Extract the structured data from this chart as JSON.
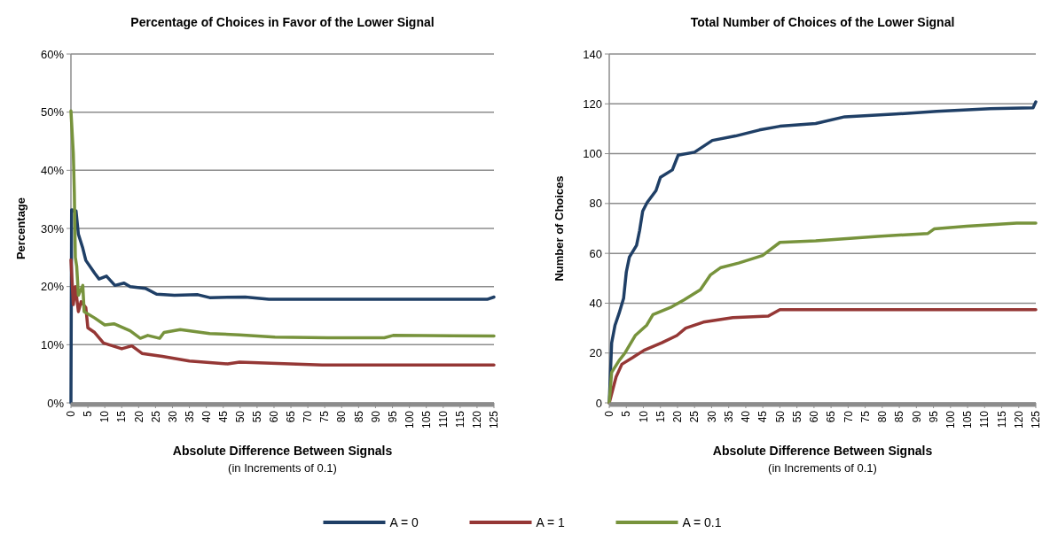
{
  "chart_data": [
    {
      "type": "line",
      "title": "Percentage of Choices in Favor of the Lower Signal",
      "xlabel": "Absolute Difference Between Signals",
      "annotations": [
        "(in Increments of 0.1)"
      ],
      "ylabel": "Percentage",
      "xlim": [
        0,
        125
      ],
      "xticks": [
        0,
        5,
        10,
        15,
        20,
        25,
        30,
        35,
        40,
        45,
        50,
        55,
        60,
        65,
        70,
        75,
        80,
        85,
        90,
        95,
        100,
        105,
        110,
        115,
        120,
        125
      ],
      "ylim": [
        0,
        60
      ],
      "yticks": [
        {
          "value": 0,
          "label": "0%"
        },
        {
          "value": 10,
          "label": "10%"
        },
        {
          "value": 20,
          "label": "20%"
        },
        {
          "value": 30,
          "label": "30%"
        },
        {
          "value": 40,
          "label": "40%"
        },
        {
          "value": 50,
          "label": "50%"
        },
        {
          "value": 60,
          "label": "60%"
        }
      ],
      "grid": "y",
      "legend": "bottom",
      "marker": "none",
      "series": [
        {
          "name": "A = 0",
          "color": "#1f3f66",
          "x": [
            0,
            0.2,
            1.5,
            2.2,
            3.5,
            4.4,
            7,
            8.3,
            10.5,
            13,
            15.7,
            17.5,
            22,
            25.3,
            30.6,
            37.5,
            41,
            51.5,
            58.5,
            84.7,
            123,
            125
          ],
          "values": [
            0,
            33.2,
            33,
            29,
            26.6,
            24.5,
            22.3,
            21.3,
            21.8,
            20.2,
            20.6,
            20,
            19.7,
            18.7,
            18.5,
            18.6,
            18.1,
            18.2,
            17.8,
            17.8,
            17.8,
            18.2
          ]
        },
        {
          "name": "A = 1",
          "color": "#953735",
          "x": [
            0,
            0.7,
            1.3,
            2.2,
            3,
            4.4,
            5,
            7,
            9.6,
            15,
            18,
            21,
            27,
            35,
            46.3,
            49.8,
            74.2,
            125
          ],
          "values": [
            24.6,
            16.9,
            20,
            15.7,
            17.4,
            16.4,
            12.9,
            12.1,
            10.3,
            9.3,
            9.8,
            8.5,
            8,
            7.2,
            6.7,
            7,
            6.5,
            6.5
          ]
        },
        {
          "name": "A = 0.1",
          "color": "#77933c",
          "x": [
            0,
            0.7,
            1,
            1.3,
            1.7,
            2.2,
            3.5,
            3.9,
            7,
            10,
            12.7,
            17.5,
            20.5,
            22.7,
            26.2,
            27.5,
            32.3,
            41,
            49.8,
            60.3,
            76,
            92.6,
            95.2,
            125
          ],
          "values": [
            50.2,
            42.9,
            36.2,
            25,
            23.5,
            18.5,
            20.2,
            15.7,
            14.6,
            13.4,
            13.6,
            12.4,
            11.1,
            11.6,
            11.1,
            12.1,
            12.6,
            11.9,
            11.7,
            11.3,
            11.2,
            11.2,
            11.6,
            11.5
          ]
        }
      ]
    },
    {
      "type": "line",
      "title": "Total Number of Choices of the Lower Signal",
      "xlabel": "Absolute Difference Between Signals",
      "annotations": [
        "(in Increments of 0.1)"
      ],
      "ylabel": "Number of Choices",
      "xlim": [
        0,
        125
      ],
      "xticks": [
        0,
        5,
        10,
        15,
        20,
        25,
        30,
        35,
        40,
        45,
        50,
        55,
        60,
        65,
        70,
        75,
        80,
        85,
        90,
        95,
        100,
        105,
        110,
        115,
        120,
        125
      ],
      "ylim": [
        0,
        140
      ],
      "yticks": [
        0,
        20,
        40,
        60,
        80,
        100,
        120,
        140
      ],
      "grid": "y",
      "marker": "none",
      "series": [
        {
          "color": "#1f3f66",
          "x": [
            0,
            0.7,
            1.7,
            2.9,
            4.2,
            5,
            5.9,
            8,
            8.9,
            9.8,
            11.1,
            13.7,
            15,
            18.5,
            20.2,
            25,
            30.2,
            37,
            44,
            50,
            60.5,
            69,
            84,
            96,
            111.6,
            124.2,
            125
          ],
          "values": [
            0,
            24,
            31.2,
            36,
            41.9,
            52.5,
            58.5,
            63.2,
            69.2,
            76.9,
            80.4,
            85.2,
            90.5,
            93.5,
            99.4,
            100.6,
            105.3,
            107.1,
            109.5,
            111,
            112.1,
            114.8,
            115.9,
            117,
            118.1,
            118.4,
            120.8
          ]
        },
        {
          "color": "#953735",
          "x": [
            0,
            0.3,
            2,
            3.7,
            6.8,
            10.2,
            15.4,
            19.8,
            22.4,
            27.6,
            36.2,
            46.6,
            50,
            125
          ],
          "values": [
            0,
            1.5,
            10.4,
            15.5,
            18.1,
            21.1,
            24.1,
            27,
            30,
            32.4,
            34.2,
            34.8,
            37.4,
            37.4
          ]
        },
        {
          "color": "#77933c",
          "x": [
            0,
            0.7,
            2.9,
            4.6,
            7.6,
            11,
            12.8,
            18,
            21.9,
            26.7,
            29.7,
            32.7,
            37.9,
            44.9,
            50,
            60.5,
            78.7,
            93.4,
            95.2,
            104.7,
            119.4,
            125
          ],
          "values": [
            0,
            12.2,
            17,
            20,
            27,
            31.2,
            35.4,
            38.3,
            41.3,
            45.4,
            51.4,
            54.3,
            56.1,
            59.1,
            64.4,
            65,
            66.8,
            68,
            69.8,
            70.9,
            72.1,
            72.1
          ]
        }
      ]
    }
  ]
}
